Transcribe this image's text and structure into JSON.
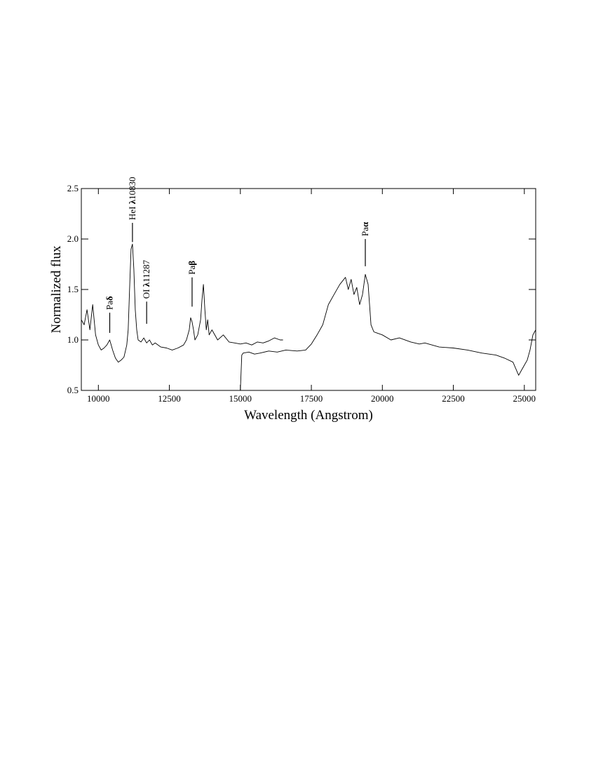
{
  "chart_data": {
    "type": "line",
    "xlabel": "Wavelength  (Angstrom)",
    "ylabel": "Normalized flux",
    "xlim": [
      9400,
      25400
    ],
    "ylim": [
      0.5,
      2.5
    ],
    "x_ticks": [
      10000,
      12500,
      15000,
      17500,
      20000,
      22500,
      25000
    ],
    "x_tick_labels": [
      "10000",
      "12500",
      "15000",
      "17500",
      "20000",
      "22500",
      "25000"
    ],
    "y_ticks": [
      0.5,
      1.0,
      1.5,
      2.0,
      2.5
    ],
    "y_tick_labels": [
      "0.5",
      "1.0",
      "1.5",
      "2.0",
      "2.5"
    ],
    "grid": false,
    "line_color": "#000000",
    "series": [
      {
        "x": [
          9400,
          9500,
          9600,
          9700,
          9800,
          9900,
          10000,
          10100,
          10200,
          10300,
          10400,
          10500,
          10600,
          10700,
          10800,
          10900,
          11000,
          11050,
          11100,
          11150,
          11200,
          11250,
          11300,
          11350,
          11400,
          11500,
          11600,
          11700,
          11800,
          11900,
          12000,
          12200,
          12400,
          12600,
          12800,
          13000,
          13100,
          13200,
          13250,
          13300,
          13350,
          13400,
          13500,
          13600,
          13650,
          13700,
          13750,
          13800,
          13850,
          13900,
          14000,
          14200,
          14400,
          14600,
          14800,
          15000,
          15200,
          15400,
          15600,
          15800,
          16000,
          16200,
          16400,
          16500
        ],
        "y": [
          1.2,
          1.15,
          1.3,
          1.1,
          1.35,
          1.05,
          0.95,
          0.9,
          0.92,
          0.95,
          1.0,
          0.9,
          0.82,
          0.78,
          0.8,
          0.83,
          0.95,
          1.1,
          1.5,
          1.9,
          1.95,
          1.7,
          1.3,
          1.1,
          1.0,
          0.98,
          1.02,
          0.97,
          1.0,
          0.95,
          0.97,
          0.93,
          0.92,
          0.9,
          0.92,
          0.95,
          1.0,
          1.1,
          1.22,
          1.18,
          1.1,
          1.0,
          1.05,
          1.2,
          1.4,
          1.55,
          1.3,
          1.1,
          1.2,
          1.05,
          1.1,
          1.0,
          1.05,
          0.98,
          0.97,
          0.96,
          0.97,
          0.95,
          0.98,
          0.97,
          0.99,
          1.02,
          1.0,
          1.0
        ]
      },
      {
        "x": [
          15000,
          15050,
          15100,
          15300,
          15500,
          15700,
          16000,
          16300,
          16600,
          17000,
          17300,
          17500,
          17700,
          17900,
          18100,
          18300,
          18500,
          18700,
          18800,
          18900,
          19000,
          19100,
          19200,
          19300,
          19400,
          19500,
          19600,
          19700,
          19800,
          20000,
          20300,
          20600,
          21000,
          21300,
          21500,
          22000,
          22500,
          23000,
          23500,
          24000,
          24300,
          24600,
          24800,
          25000,
          25100,
          25200,
          25300,
          25400
        ],
        "y": [
          0.5,
          0.85,
          0.87,
          0.88,
          0.86,
          0.87,
          0.89,
          0.88,
          0.9,
          0.89,
          0.9,
          0.96,
          1.05,
          1.15,
          1.35,
          1.45,
          1.55,
          1.62,
          1.5,
          1.6,
          1.45,
          1.52,
          1.35,
          1.45,
          1.65,
          1.55,
          1.15,
          1.08,
          1.07,
          1.05,
          1.0,
          1.02,
          0.98,
          0.96,
          0.97,
          0.93,
          0.92,
          0.9,
          0.87,
          0.85,
          0.82,
          0.78,
          0.65,
          0.75,
          0.8,
          0.9,
          1.05,
          1.1
        ]
      }
    ],
    "annotations": [
      {
        "base": "Pa",
        "symbol": "δ",
        "suffix": "",
        "x": 10400,
        "tick_y": [
          1.07,
          1.27
        ]
      },
      {
        "base": "HeI ",
        "symbol": "λ",
        "suffix": "10830",
        "x": 11200,
        "tick_y": [
          1.97,
          2.16
        ]
      },
      {
        "base": "OI ",
        "symbol": "λ",
        "suffix": "11287",
        "x": 11700,
        "tick_y": [
          1.16,
          1.38
        ]
      },
      {
        "base": "Pa",
        "symbol": "β",
        "suffix": "",
        "x": 13300,
        "tick_y": [
          1.33,
          1.62
        ]
      },
      {
        "base": "Pa",
        "symbol": "α",
        "suffix": "",
        "x": 19400,
        "tick_y": [
          1.73,
          2.0
        ]
      }
    ]
  }
}
